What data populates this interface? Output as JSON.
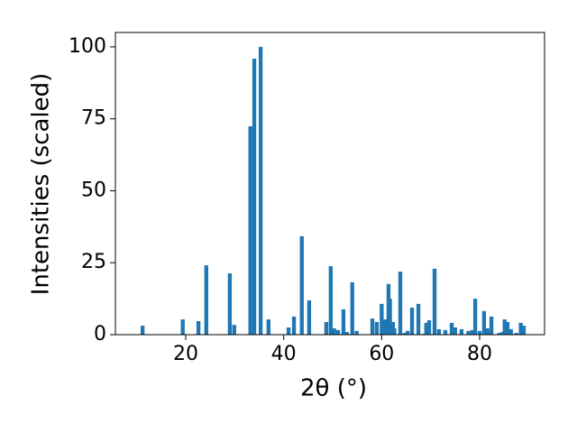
{
  "chart_data": {
    "type": "bar",
    "xlabel": "2θ (°)",
    "ylabel": "Intensities (scaled)",
    "color": "#1f77b4",
    "x": [
      11.2,
      19.4,
      22.6,
      24.2,
      29.0,
      29.9,
      33.2,
      34.0,
      35.3,
      36.9,
      41.0,
      42.1,
      43.7,
      45.2,
      48.7,
      49.6,
      50.3,
      51.1,
      52.2,
      52.9,
      54.0,
      54.9,
      58.1,
      59.0,
      60.0,
      60.8,
      61.4,
      61.7,
      62.3,
      62.6,
      63.8,
      64.7,
      65.3,
      66.2,
      67.5,
      68.6,
      69.1,
      69.7,
      70.8,
      71.7,
      73.0,
      74.3,
      75.0,
      76.3,
      77.7,
      78.5,
      79.1,
      80.0,
      80.9,
      81.6,
      82.4,
      84.0,
      84.6,
      85.1,
      85.7,
      86.4,
      87.5,
      88.4,
      89.0
    ],
    "values": [
      3.1,
      5.3,
      4.7,
      24.1,
      21.3,
      3.4,
      72.4,
      95.9,
      100,
      5.3,
      2.5,
      6.3,
      34.2,
      11.9,
      4.4,
      23.8,
      2.2,
      1.6,
      8.8,
      0.9,
      18.2,
      1.3,
      5.6,
      4.4,
      10.7,
      5.3,
      17.6,
      12.5,
      4.4,
      2.2,
      21.9,
      0.6,
      1.3,
      9.4,
      10.7,
      0.3,
      4.1,
      5.0,
      22.9,
      1.9,
      1.6,
      4.1,
      2.5,
      1.9,
      1.3,
      1.6,
      12.5,
      1.3,
      8.2,
      2.2,
      6.3,
      0.6,
      0.9,
      5.3,
      4.4,
      1.9,
      0.6,
      4.1,
      3.1
    ],
    "xlim": [
      5.65,
      93.25
    ],
    "ylim": [
      0,
      105
    ],
    "xticks": [
      20,
      40,
      60,
      80
    ],
    "yticks": [
      0,
      25,
      50,
      75,
      100
    ]
  }
}
